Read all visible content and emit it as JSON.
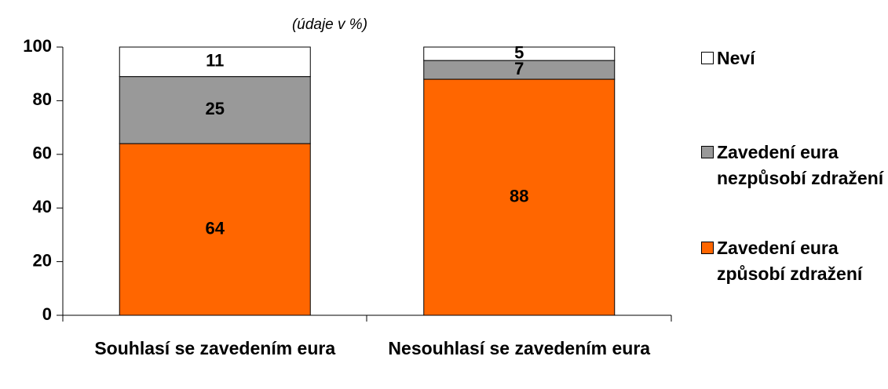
{
  "chart_data": {
    "type": "stacked_bar",
    "subtitle": "(údaje v %)",
    "categories": [
      "Souhlasí se zavedením eura",
      "Nesouhlasí se zavedením eura"
    ],
    "series": [
      {
        "name": "Zavedení eura způsobí zdražení",
        "color": "#ff6600",
        "values": [
          64,
          88
        ]
      },
      {
        "name": "Zavedení eura nezpůsobí zdražení",
        "color": "#999999",
        "values": [
          25,
          7
        ]
      },
      {
        "name": "Neví",
        "color": "#ffffff",
        "values": [
          11,
          5
        ]
      }
    ],
    "ylim": [
      0,
      100
    ],
    "yticks": [
      0,
      20,
      40,
      60,
      80,
      100
    ],
    "legend": "right"
  }
}
